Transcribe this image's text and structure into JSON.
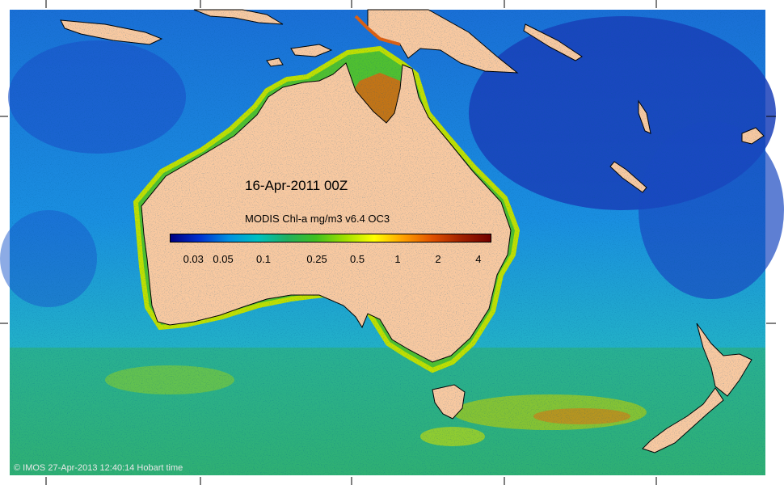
{
  "date_label": "16-Apr-2011 00Z",
  "colorbar": {
    "title": "MODIS Chl-a mg/m3 v6.4 OC3",
    "ticks": [
      {
        "label": "0.03",
        "value": 0.03
      },
      {
        "label": "0.05",
        "value": 0.05
      },
      {
        "label": "0.1",
        "value": 0.1
      },
      {
        "label": "0.25",
        "value": 0.25
      },
      {
        "label": "0.5",
        "value": 0.5
      },
      {
        "label": "1",
        "value": 1
      },
      {
        "label": "2",
        "value": 2
      },
      {
        "label": "4",
        "value": 4
      }
    ],
    "scale": "log",
    "range": [
      0.02,
      5
    ],
    "colors": [
      "#000080",
      "#0030d0",
      "#0090e0",
      "#00c0c0",
      "#20b060",
      "#40c020",
      "#a0e000",
      "#ffff00",
      "#ffa000",
      "#e05000",
      "#a02000",
      "#700000"
    ]
  },
  "copyright": "© IMOS 27-Apr-2013 12:40:14 Hobart time",
  "colors": {
    "land": "#f9c9a0",
    "deep_ocean": "#1a50c8",
    "mid_ocean": "#1a90dc",
    "coastal": "#40c040",
    "bloom": "#e06010",
    "frame": "#ffffff"
  }
}
